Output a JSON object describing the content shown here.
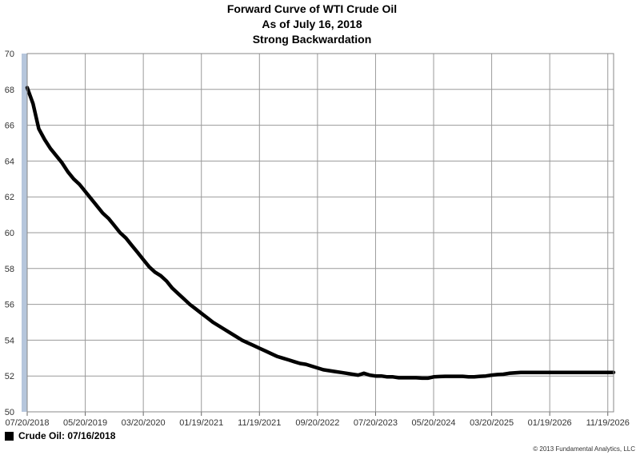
{
  "chart_data": {
    "type": "line",
    "title": [
      "Forward Curve of WTI Crude Oil",
      "As of July 16, 2018",
      "Strong Backwardation"
    ],
    "xlabel": "",
    "ylabel": "",
    "ylim": [
      50,
      70
    ],
    "yticks": [
      50,
      52,
      54,
      56,
      58,
      60,
      62,
      64,
      66,
      68,
      70
    ],
    "xtick_labels": [
      "07/20/2018",
      "05/20/2019",
      "03/20/2020",
      "01/19/2021",
      "11/19/2021",
      "09/20/2022",
      "07/20/2023",
      "05/20/2024",
      "03/20/2025",
      "01/19/2026",
      "11/19/2026"
    ],
    "x_range_months": [
      0,
      101
    ],
    "grid": true,
    "legend_position": "bottom-left",
    "series": [
      {
        "name": "Crude Oil: 07/16/2018",
        "color": "#000000",
        "points": [
          [
            0,
            68.1
          ],
          [
            1,
            67.2
          ],
          [
            2,
            65.8
          ],
          [
            3,
            65.2
          ],
          [
            4,
            64.7
          ],
          [
            5,
            64.3
          ],
          [
            6,
            63.9
          ],
          [
            7,
            63.4
          ],
          [
            8,
            63.0
          ],
          [
            9,
            62.7
          ],
          [
            10,
            62.3
          ],
          [
            11,
            61.9
          ],
          [
            12,
            61.5
          ],
          [
            13,
            61.1
          ],
          [
            14,
            60.8
          ],
          [
            15,
            60.4
          ],
          [
            16,
            60.0
          ],
          [
            17,
            59.7
          ],
          [
            18,
            59.3
          ],
          [
            19,
            58.9
          ],
          [
            20,
            58.5
          ],
          [
            21,
            58.1
          ],
          [
            22,
            57.8
          ],
          [
            23,
            57.6
          ],
          [
            24,
            57.3
          ],
          [
            25,
            56.9
          ],
          [
            26,
            56.6
          ],
          [
            27,
            56.3
          ],
          [
            28,
            56.0
          ],
          [
            29,
            55.75
          ],
          [
            30,
            55.5
          ],
          [
            31,
            55.25
          ],
          [
            32,
            55.0
          ],
          [
            33,
            54.8
          ],
          [
            34,
            54.6
          ],
          [
            35,
            54.4
          ],
          [
            36,
            54.2
          ],
          [
            37,
            54.0
          ],
          [
            38,
            53.85
          ],
          [
            39,
            53.7
          ],
          [
            40,
            53.55
          ],
          [
            41,
            53.4
          ],
          [
            42,
            53.25
          ],
          [
            43,
            53.1
          ],
          [
            44,
            53.0
          ],
          [
            45,
            52.9
          ],
          [
            46,
            52.8
          ],
          [
            47,
            52.7
          ],
          [
            48,
            52.65
          ],
          [
            49,
            52.55
          ],
          [
            50,
            52.45
          ],
          [
            51,
            52.35
          ],
          [
            52,
            52.3
          ],
          [
            53,
            52.25
          ],
          [
            54,
            52.2
          ],
          [
            55,
            52.15
          ],
          [
            56,
            52.1
          ],
          [
            57,
            52.05
          ],
          [
            58,
            52.15
          ],
          [
            59,
            52.05
          ],
          [
            60,
            52.0
          ],
          [
            61,
            52.0
          ],
          [
            62,
            51.95
          ],
          [
            63,
            51.95
          ],
          [
            64,
            51.9
          ],
          [
            65,
            51.9
          ],
          [
            66,
            51.9
          ],
          [
            67,
            51.9
          ],
          [
            68,
            51.88
          ],
          [
            69,
            51.88
          ],
          [
            70,
            51.95
          ],
          [
            71,
            51.97
          ],
          [
            72,
            51.98
          ],
          [
            73,
            51.98
          ],
          [
            74,
            51.98
          ],
          [
            75,
            51.98
          ],
          [
            76,
            51.95
          ],
          [
            77,
            51.95
          ],
          [
            78,
            51.98
          ],
          [
            79,
            52.0
          ],
          [
            80,
            52.05
          ],
          [
            81,
            52.08
          ],
          [
            82,
            52.1
          ],
          [
            83,
            52.15
          ],
          [
            84,
            52.18
          ],
          [
            85,
            52.2
          ],
          [
            86,
            52.2
          ],
          [
            87,
            52.2
          ],
          [
            88,
            52.2
          ],
          [
            89,
            52.2
          ],
          [
            90,
            52.2
          ],
          [
            91,
            52.2
          ],
          [
            92,
            52.2
          ],
          [
            93,
            52.2
          ],
          [
            94,
            52.2
          ],
          [
            95,
            52.2
          ],
          [
            96,
            52.2
          ],
          [
            97,
            52.2
          ],
          [
            98,
            52.2
          ],
          [
            99,
            52.2
          ],
          [
            100,
            52.2
          ],
          [
            101,
            52.2
          ]
        ]
      }
    ]
  },
  "footer": {
    "legend_label": "Crude Oil: 07/16/2018",
    "copyright": "© 2013 Fundamental Analytics, LLC"
  }
}
